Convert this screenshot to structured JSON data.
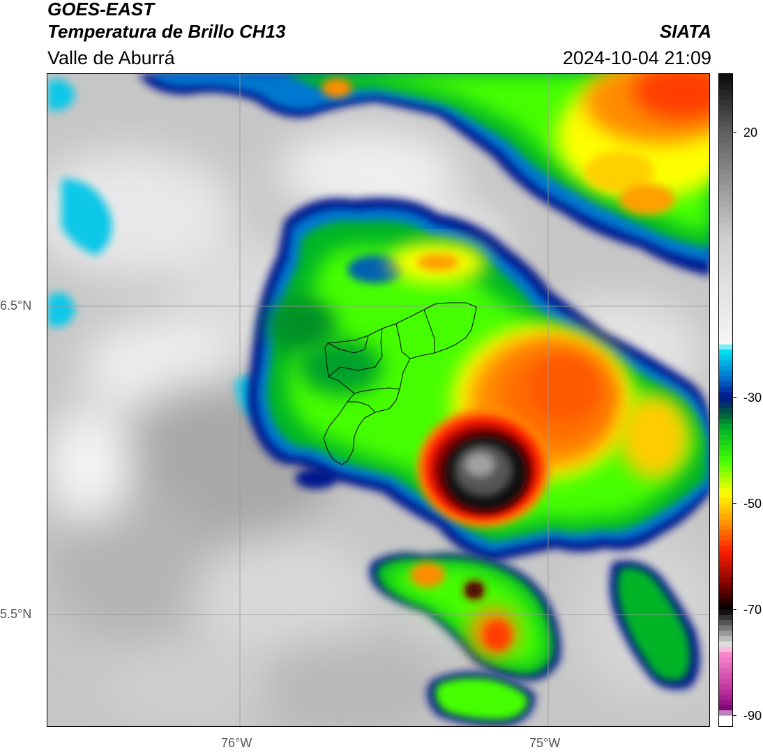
{
  "header": {
    "satellite": "GOES-EAST",
    "product": "Temperatura de Brillo CH13",
    "region": "Valle de Aburrá",
    "brand": "SIATA",
    "datetime": "2024-10-04 21:09"
  },
  "map": {
    "lat_labels": [
      "6.5°N",
      "5.5°N"
    ],
    "lon_labels": [
      "76°W",
      "75°W"
    ],
    "gridlines": true
  },
  "colorbar": {
    "ticks": [
      "20",
      "-30",
      "-50",
      "-70",
      "-90"
    ],
    "tick_values": [
      20,
      -30,
      -50,
      -70,
      -90
    ],
    "range": [
      -92,
      31
    ],
    "unit_hint": "°C",
    "stops": [
      {
        "v": 31,
        "c": "#0a0a0a"
      },
      {
        "v": 20,
        "c": "#5f5f5f"
      },
      {
        "v": 0,
        "c": "#cfcfcf"
      },
      {
        "v": -20,
        "c": "#f6f6f6"
      },
      {
        "v": -21,
        "c": "#00e8f4"
      },
      {
        "v": -26,
        "c": "#0078d0"
      },
      {
        "v": -30,
        "c": "#00148c"
      },
      {
        "v": -33,
        "c": "#005a3c"
      },
      {
        "v": -36,
        "c": "#00b428"
      },
      {
        "v": -42,
        "c": "#44ff00"
      },
      {
        "v": -48,
        "c": "#ffff00"
      },
      {
        "v": -54,
        "c": "#ff8c00"
      },
      {
        "v": -59,
        "c": "#ff1e00"
      },
      {
        "v": -66,
        "c": "#6e0000"
      },
      {
        "v": -70,
        "c": "#000000"
      },
      {
        "v": -72,
        "c": "#444444"
      },
      {
        "v": -77,
        "c": "#eeeeee"
      },
      {
        "v": -78,
        "c": "#ff8cd2"
      },
      {
        "v": -86,
        "c": "#b42896"
      },
      {
        "v": -89,
        "c": "#780078"
      },
      {
        "v": -90,
        "c": "#ffffff"
      },
      {
        "v": -92,
        "c": "#ffffff"
      }
    ]
  }
}
